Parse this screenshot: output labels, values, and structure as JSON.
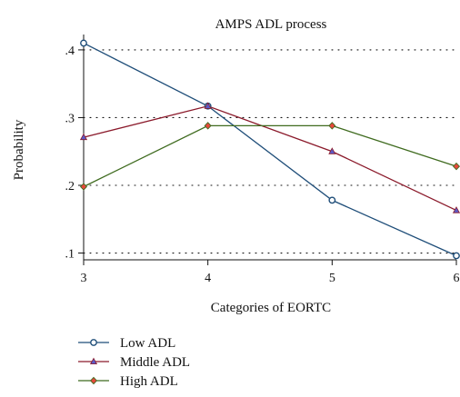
{
  "chart_data": {
    "type": "line",
    "title": "AMPS ADL process",
    "xlabel": "Categories of EORTC",
    "ylabel": "Probability",
    "x": [
      3,
      4,
      5,
      6
    ],
    "xlim": [
      3,
      6
    ],
    "ylim": [
      0.09,
      0.42
    ],
    "x_tick_labels": [
      "3",
      "4",
      "5",
      "6"
    ],
    "y_ticks": [
      0.1,
      0.2,
      0.3,
      0.4
    ],
    "y_tick_labels": [
      ".1",
      ".2",
      ".3",
      ".4"
    ],
    "grid": "horizontal dotted",
    "legend_position": "bottom-left",
    "series": [
      {
        "name": "Low ADL",
        "values": [
          0.41,
          0.317,
          0.178,
          0.096
        ],
        "color": "#1f4e79",
        "marker": "circle"
      },
      {
        "name": "Middle ADL",
        "values": [
          0.271,
          0.317,
          0.25,
          0.163
        ],
        "color": "#8b1a2b",
        "marker": "triangle"
      },
      {
        "name": "High ADL",
        "values": [
          0.198,
          0.288,
          0.288,
          0.228
        ],
        "color": "#3f6b1f",
        "marker": "diamond"
      }
    ]
  },
  "marker_fill": {
    "circle": "#ffffff",
    "triangle": "#5b5bc8",
    "diamond": "#e8483c"
  }
}
